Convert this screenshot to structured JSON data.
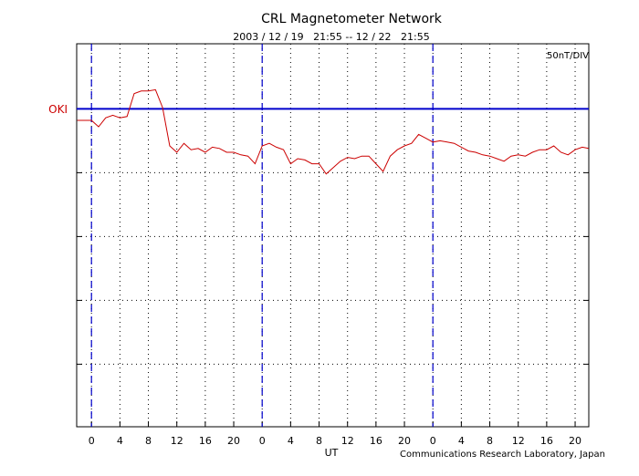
{
  "chart_data": {
    "type": "line",
    "title": "CRL Magnetometer Network",
    "subtitle": "2003 / 12 / 19   21:55 -- 12 / 22   21:55",
    "scale_note": "50nT/DIV",
    "xlabel": "UT",
    "credit": "Communications Research Laboratory, Japan",
    "xlim": [
      -2.08,
      69.92
    ],
    "ylim": [
      -249,
      51
    ],
    "xticks": [
      0,
      4,
      8,
      12,
      16,
      20,
      {
        "value": 24,
        "label": "0"
      },
      {
        "value": 28,
        "label": "4"
      },
      {
        "value": 32,
        "label": "8"
      },
      {
        "value": 36,
        "label": "12"
      },
      {
        "value": 40,
        "label": "16"
      },
      {
        "value": 44,
        "label": "20"
      },
      {
        "value": 48,
        "label": "0"
      },
      {
        "value": 52,
        "label": "4"
      },
      {
        "value": 56,
        "label": "8"
      },
      {
        "value": 60,
        "label": "12"
      },
      {
        "value": 64,
        "label": "16"
      },
      {
        "value": 68,
        "label": "20"
      }
    ],
    "yticks": [
      -200,
      -150,
      -100,
      -50,
      0
    ],
    "grid": true,
    "baseline": 0,
    "baseline_color": "#0000cc",
    "day_lines": [
      0,
      24,
      48
    ],
    "day_line_color": "#0000cc",
    "x": [
      -2,
      -1,
      0,
      1,
      2,
      3,
      4,
      5,
      6,
      7,
      8,
      9,
      10,
      11,
      12,
      13,
      14,
      15,
      16,
      17,
      18,
      19,
      20,
      21,
      22,
      23,
      24,
      25,
      26,
      27,
      28,
      29,
      30,
      31,
      32,
      33,
      34,
      35,
      36,
      37,
      38,
      39,
      40,
      41,
      42,
      43,
      44,
      45,
      46,
      47,
      48,
      49,
      50,
      51,
      52,
      53,
      54,
      55,
      56,
      57,
      58,
      59,
      60,
      61,
      62,
      63,
      64,
      65,
      66,
      67,
      68,
      69,
      69.9
    ],
    "series": [
      {
        "name": "OKI",
        "color": "#cc0000",
        "values": [
          -9,
          -9,
          -9,
          -14,
          -7,
          -5,
          -7,
          -6,
          12,
          14,
          14,
          15,
          1,
          -29,
          -34,
          -27,
          -32,
          -31,
          -34,
          -30,
          -31,
          -34,
          -34,
          -36,
          -37,
          -43,
          -29,
          -27,
          -30,
          -32,
          -43,
          -39,
          -40,
          -43,
          -43,
          -51,
          -46,
          -41,
          -38,
          -39,
          -37,
          -37,
          -43,
          -49,
          -37,
          -32,
          -29,
          -27,
          -20,
          -23,
          -26,
          -25,
          -26,
          -27,
          -30,
          -33,
          -34,
          -36,
          -37,
          -39,
          -41,
          -37,
          -36,
          -37,
          -34,
          -32,
          -32,
          -29,
          -34,
          -36,
          -32,
          -30,
          -31
        ]
      }
    ]
  }
}
